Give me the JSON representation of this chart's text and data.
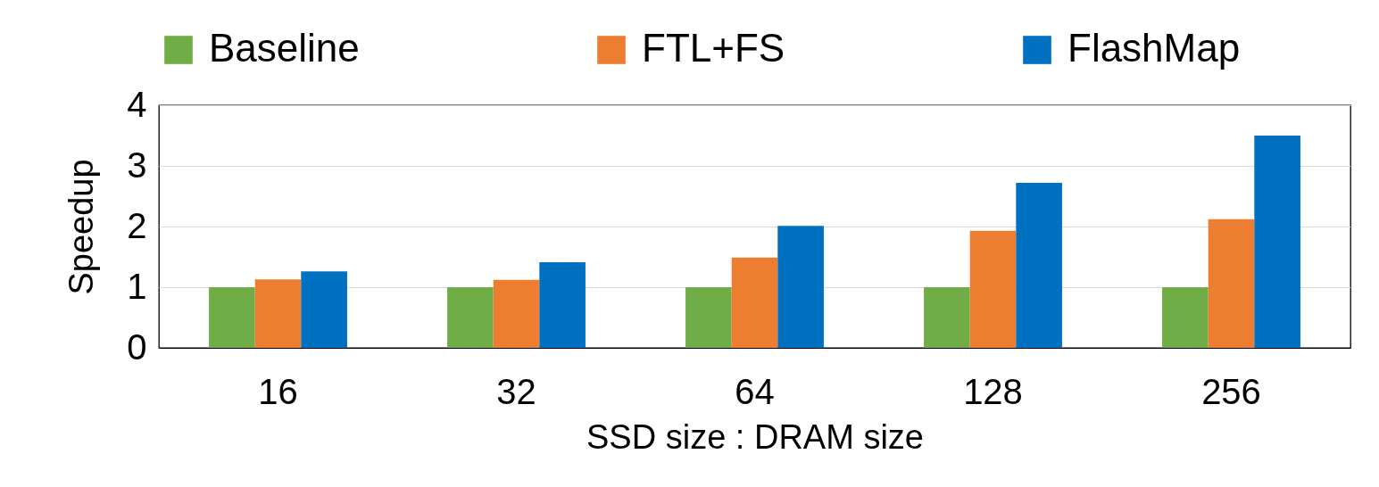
{
  "chart_data": {
    "type": "bar",
    "xlabel": "SSD size : DRAM size",
    "ylabel": "Speedup",
    "categories": [
      "16",
      "32",
      "64",
      "128",
      "256"
    ],
    "series": [
      {
        "name": "Baseline",
        "color": "#70ad47",
        "values": [
          1,
          1,
          1,
          1,
          1
        ]
      },
      {
        "name": "FTL+FS",
        "color": "#ed7d31",
        "values": [
          1.13,
          1.12,
          1.49,
          1.93,
          2.12
        ]
      },
      {
        "name": "FlashMap",
        "color": "#0070c0",
        "values": [
          1.26,
          1.41,
          2.01,
          2.72,
          3.5
        ]
      }
    ],
    "ylim": [
      0,
      4
    ],
    "yticks": [
      0,
      1,
      2,
      3,
      4
    ],
    "grid": "y",
    "legend": "top"
  }
}
